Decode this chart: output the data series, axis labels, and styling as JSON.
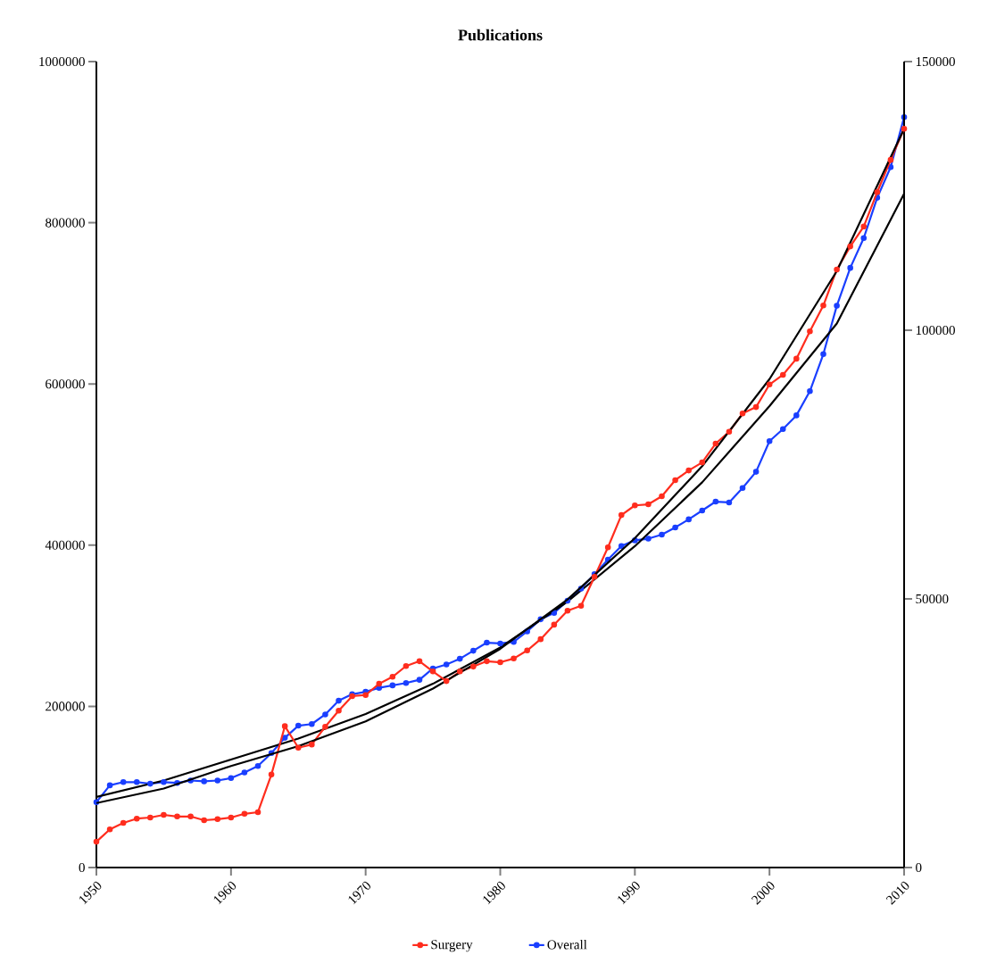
{
  "chart_data": {
    "type": "line",
    "title": "Publications",
    "x": [
      1950,
      1951,
      1952,
      1953,
      1954,
      1955,
      1956,
      1957,
      1958,
      1959,
      1960,
      1961,
      1962,
      1963,
      1964,
      1965,
      1966,
      1967,
      1968,
      1969,
      1970,
      1971,
      1972,
      1973,
      1974,
      1975,
      1976,
      1977,
      1978,
      1979,
      1980,
      1981,
      1982,
      1983,
      1984,
      1985,
      1986,
      1987,
      1988,
      1989,
      1990,
      1991,
      1992,
      1993,
      1994,
      1995,
      1996,
      1997,
      1998,
      1999,
      2000,
      2001,
      2002,
      2003,
      2004,
      2005,
      2006,
      2007,
      2008,
      2009,
      2010
    ],
    "series": [
      {
        "name": "Surgery",
        "color": "#ff2d1e",
        "axis": "y2",
        "values": [
          4800,
          7100,
          8300,
          9100,
          9300,
          9800,
          9500,
          9500,
          8800,
          9000,
          9300,
          10000,
          10300,
          17300,
          26300,
          22300,
          22900,
          26200,
          29200,
          31900,
          32100,
          34200,
          35500,
          37500,
          38400,
          36500,
          34700,
          36500,
          37400,
          38400,
          38200,
          38900,
          40400,
          42500,
          45200,
          47800,
          48700,
          54100,
          59600,
          65600,
          67400,
          67600,
          69100,
          72100,
          73900,
          75400,
          78900,
          81100,
          84500,
          85700,
          89900,
          91700,
          94700,
          99800,
          104600,
          111300,
          115600,
          119300,
          125700,
          131700,
          137500
        ]
      },
      {
        "name": "Overall",
        "color": "#1a3fff",
        "values": [
          81000,
          102000,
          106000,
          106000,
          104000,
          106000,
          105000,
          108000,
          107000,
          108000,
          111000,
          118000,
          126000,
          142000,
          161000,
          176000,
          178000,
          190000,
          207000,
          215000,
          218000,
          223000,
          226000,
          229000,
          233000,
          247000,
          252000,
          259000,
          269000,
          279000,
          278000,
          280000,
          293000,
          308000,
          316000,
          331000,
          346000,
          364000,
          382000,
          399000,
          406000,
          408000,
          413000,
          422000,
          432000,
          443000,
          454000,
          453000,
          471000,
          491000,
          529000,
          544000,
          561000,
          591000,
          637000,
          697000,
          744000,
          781000,
          831000,
          869000,
          931000
        ]
      },
      {
        "color": "#000000",
        "axis": "y2",
        "marker": "none",
        "x": [
          1950,
          1955,
          1960,
          1965,
          1970,
          1975,
          1980,
          1985,
          1990,
          1995,
          2000,
          2005,
          2010
        ],
        "values": [
          12000,
          14700,
          18900,
          22600,
          27200,
          33300,
          40700,
          49900,
          61300,
          74700,
          90900,
          111000,
          137500
        ]
      },
      {
        "color": "#000000",
        "marker": "none",
        "x": [
          1950,
          1955,
          1960,
          1965,
          1970,
          1975,
          1980,
          1985,
          1990,
          1995,
          2000,
          2005,
          2010
        ],
        "values": [
          87500,
          108000,
          134000,
          160000,
          190500,
          228000,
          273000,
          330000,
          398700,
          478000,
          572500,
          675000,
          836000
        ]
      }
    ],
    "xlim": [
      1950,
      2010
    ],
    "xticks": [
      1950,
      1960,
      1970,
      1980,
      1990,
      2000,
      2010
    ],
    "ylim": [
      0,
      1000000
    ],
    "yticks": [
      0,
      200000,
      400000,
      600000,
      800000,
      1000000
    ],
    "y2lim": [
      0,
      150000
    ],
    "y2ticks": [
      0,
      50000,
      100000,
      150000
    ],
    "marker": "circle",
    "grid": false,
    "legend": "bottom"
  }
}
